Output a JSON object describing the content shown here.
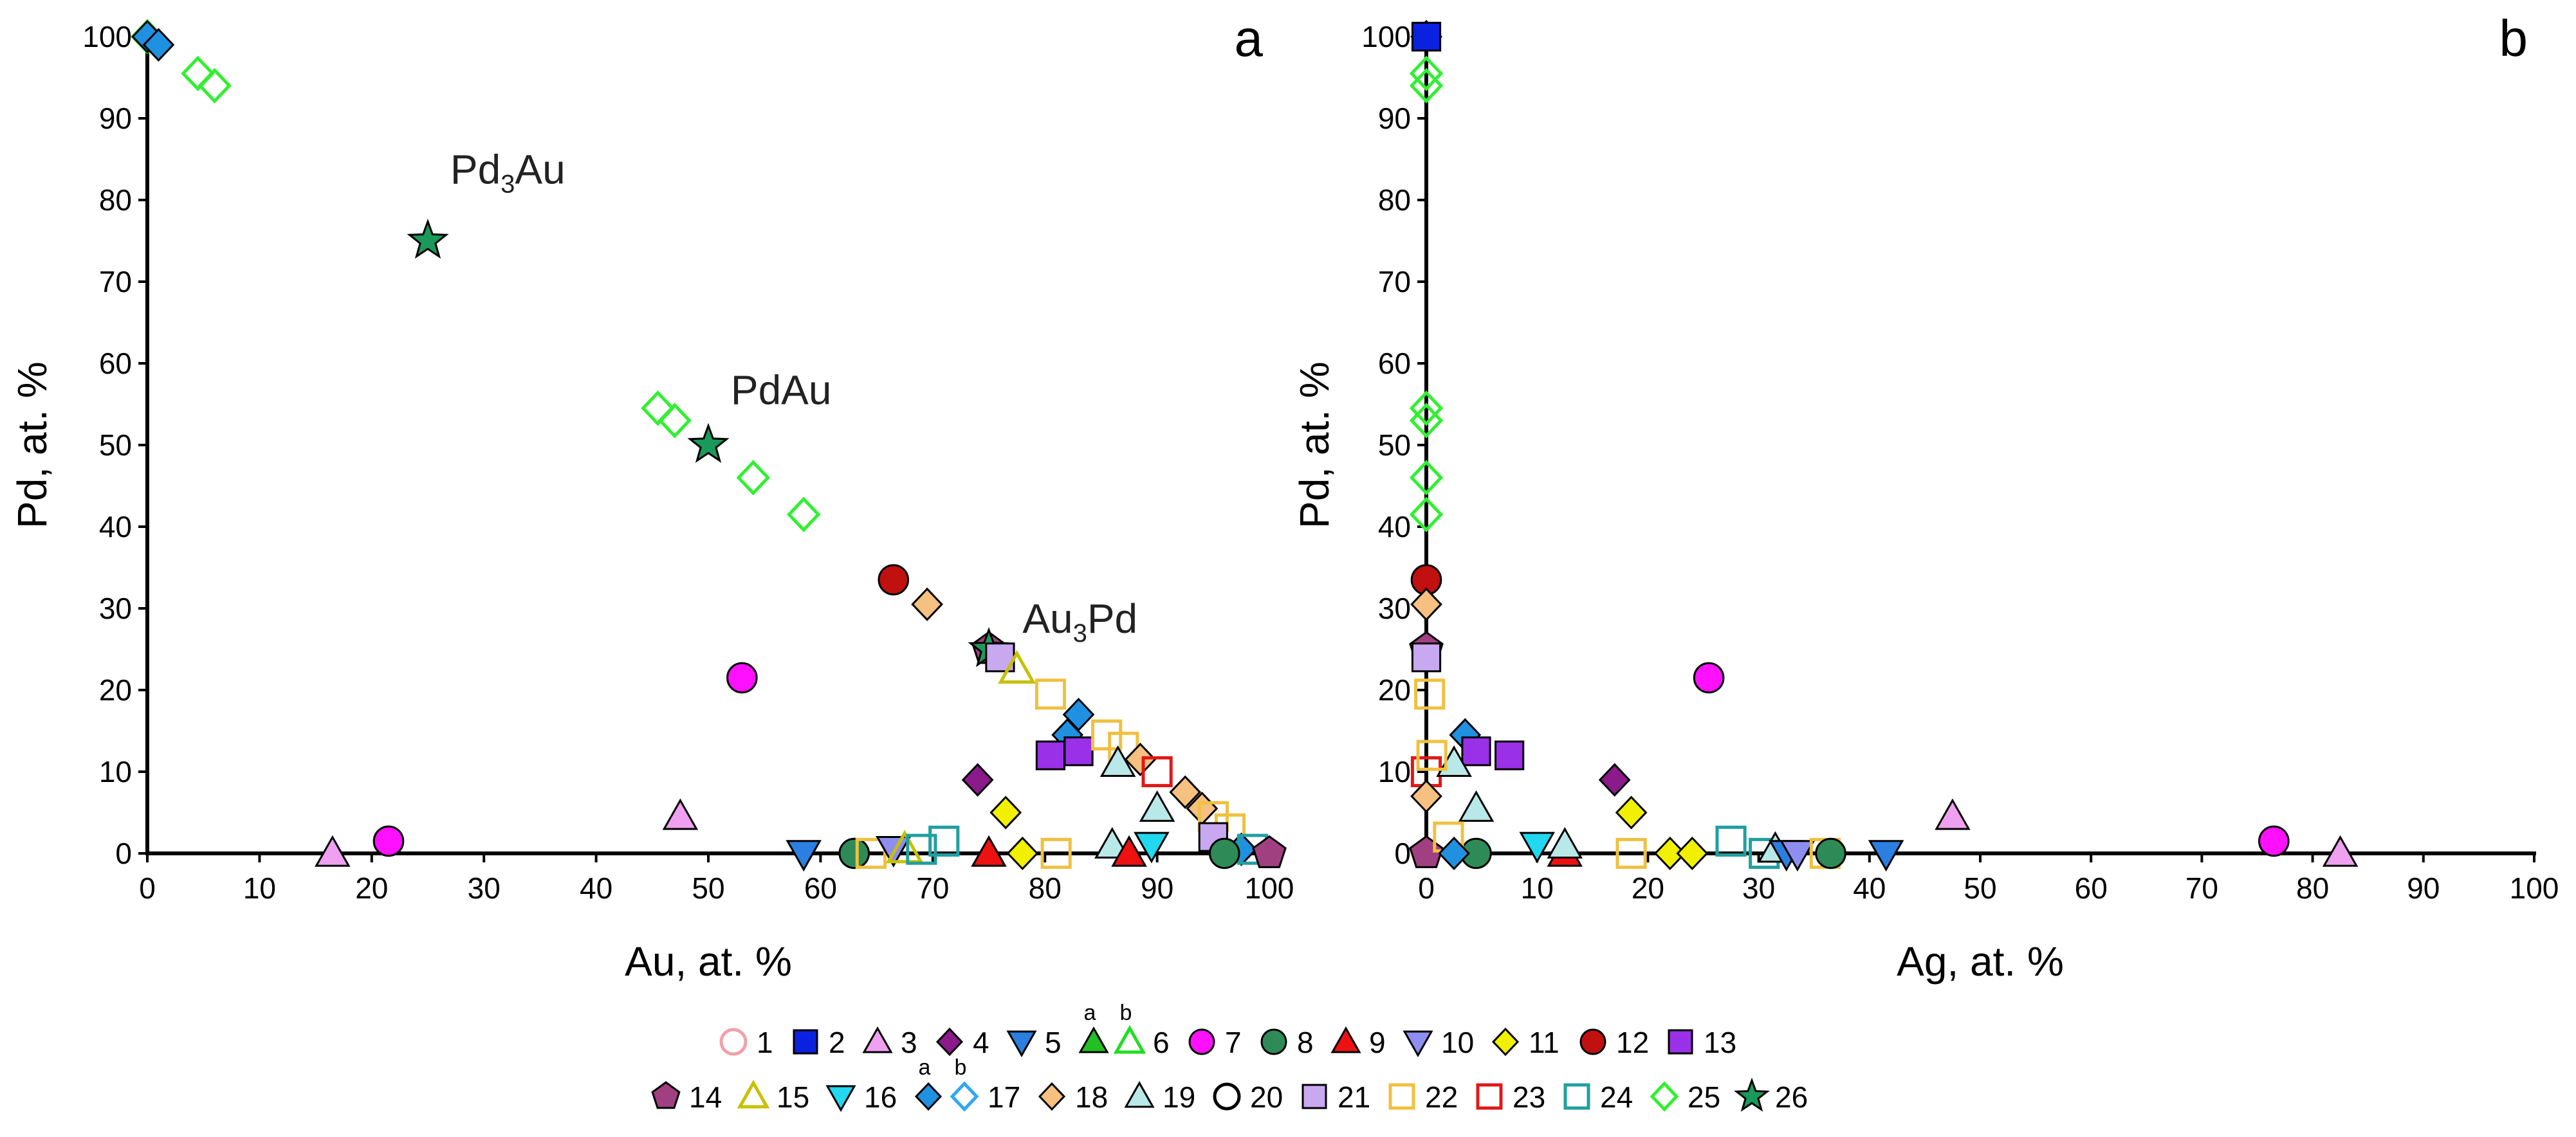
{
  "chart_data": [
    {
      "panel": "a",
      "type": "scatter",
      "xlabel": "Au, at. %",
      "ylabel": "Pd, at. %",
      "xlim": [
        0,
        100
      ],
      "ylim": [
        0,
        100
      ],
      "xticks": [
        0,
        10,
        20,
        30,
        40,
        50,
        60,
        70,
        80,
        90,
        100
      ],
      "yticks": [
        0,
        10,
        20,
        30,
        40,
        50,
        60,
        70,
        80,
        90,
        100
      ],
      "annotations": [
        {
          "text": "Pd",
          "sub": "3",
          "tail": "Au",
          "x": 27,
          "y": 82
        },
        {
          "text": "PdAu",
          "sub": "",
          "tail": "",
          "x": 52,
          "y": 55
        },
        {
          "text": "Au",
          "sub": "3",
          "tail": "Pd",
          "x": 78,
          "y": 27
        }
      ],
      "points": [
        {
          "s": 25,
          "x": 0,
          "y": 100
        },
        {
          "s": 17,
          "x": 0,
          "y": 100
        },
        {
          "s": 17,
          "x": 1,
          "y": 99
        },
        {
          "s": 25,
          "x": 4.5,
          "y": 95.5
        },
        {
          "s": 25,
          "x": 6,
          "y": 94
        },
        {
          "s": 26,
          "x": 25,
          "y": 75
        },
        {
          "s": 25,
          "x": 45.5,
          "y": 54.5
        },
        {
          "s": 25,
          "x": 47,
          "y": 53
        },
        {
          "s": 26,
          "x": 50,
          "y": 50
        },
        {
          "s": 25,
          "x": 54,
          "y": 46
        },
        {
          "s": 25,
          "x": 58.5,
          "y": 41.5
        },
        {
          "s": 12,
          "x": 66.5,
          "y": 33.5
        },
        {
          "s": 18,
          "x": 69.5,
          "y": 30.5
        },
        {
          "s": 7,
          "x": 53,
          "y": 21.5
        },
        {
          "s": 14,
          "x": 75,
          "y": 25
        },
        {
          "s": 26,
          "x": 75,
          "y": 25
        },
        {
          "s": 21,
          "x": 76,
          "y": 24
        },
        {
          "s": 15,
          "x": 77.5,
          "y": 22.5
        },
        {
          "s": 22,
          "x": 80.5,
          "y": 19.5
        },
        {
          "s": 17,
          "x": 83,
          "y": 17
        },
        {
          "s": 17,
          "x": 82,
          "y": 14.5
        },
        {
          "s": 13,
          "x": 80.5,
          "y": 12
        },
        {
          "s": 13,
          "x": 83,
          "y": 12.5
        },
        {
          "s": 22,
          "x": 85.5,
          "y": 14.5
        },
        {
          "s": 22,
          "x": 87,
          "y": 13
        },
        {
          "s": 19,
          "x": 86.5,
          "y": 11
        },
        {
          "s": 18,
          "x": 88.5,
          "y": 11.5
        },
        {
          "s": 23,
          "x": 90,
          "y": 10
        },
        {
          "s": 4,
          "x": 74,
          "y": 9
        },
        {
          "s": 11,
          "x": 76.5,
          "y": 5
        },
        {
          "s": 19,
          "x": 90,
          "y": 5.5
        },
        {
          "s": 18,
          "x": 92.5,
          "y": 7.5
        },
        {
          "s": 18,
          "x": 94,
          "y": 5.5
        },
        {
          "s": 22,
          "x": 95,
          "y": 4.5
        },
        {
          "s": 22,
          "x": 96.5,
          "y": 3
        },
        {
          "s": 21,
          "x": 95,
          "y": 2
        },
        {
          "s": 17,
          "x": 97.5,
          "y": 0.5
        },
        {
          "s": 24,
          "x": 98.5,
          "y": 0.5
        },
        {
          "s": 14,
          "x": 100,
          "y": 0
        },
        {
          "s": 3,
          "x": 16.5,
          "y": 0
        },
        {
          "s": 7,
          "x": 21.5,
          "y": 1.5
        },
        {
          "s": 3,
          "x": 47.5,
          "y": 4.5
        },
        {
          "s": 5,
          "x": 58.5,
          "y": 0
        },
        {
          "s": 8,
          "x": 63,
          "y": 0
        },
        {
          "s": 22,
          "x": 64.5,
          "y": 0
        },
        {
          "s": 10,
          "x": 66.5,
          "y": 0.5
        },
        {
          "s": 15,
          "x": 67.5,
          "y": 0.5
        },
        {
          "s": 24,
          "x": 69,
          "y": 0.5
        },
        {
          "s": 24,
          "x": 71,
          "y": 1.5
        },
        {
          "s": 9,
          "x": 75,
          "y": 0
        },
        {
          "s": 11,
          "x": 78,
          "y": 0
        },
        {
          "s": 22,
          "x": 81,
          "y": 0
        },
        {
          "s": 19,
          "x": 86,
          "y": 1
        },
        {
          "s": 9,
          "x": 87.5,
          "y": 0
        },
        {
          "s": 16,
          "x": 89.5,
          "y": 1
        },
        {
          "s": 8,
          "x": 96,
          "y": 0
        }
      ]
    },
    {
      "panel": "b",
      "type": "scatter",
      "xlabel": "Ag, at. %",
      "ylabel": "Pd, at. %",
      "xlim": [
        0,
        100
      ],
      "ylim": [
        0,
        100
      ],
      "xticks": [
        0,
        10,
        20,
        30,
        40,
        50,
        60,
        70,
        80,
        90,
        100
      ],
      "yticks": [
        0,
        10,
        20,
        30,
        40,
        50,
        60,
        70,
        80,
        90,
        100
      ],
      "points": [
        {
          "s": 17,
          "x": 0,
          "y": 100
        },
        {
          "s": 2,
          "x": 0,
          "y": 100
        },
        {
          "s": 25,
          "x": 0,
          "y": 95.5
        },
        {
          "s": 25,
          "x": 0,
          "y": 94
        },
        {
          "s": 25,
          "x": 0,
          "y": 54.5
        },
        {
          "s": 25,
          "x": 0,
          "y": 53
        },
        {
          "s": 25,
          "x": 0,
          "y": 46
        },
        {
          "s": 25,
          "x": 0,
          "y": 41.5
        },
        {
          "s": 12,
          "x": 0,
          "y": 33.5
        },
        {
          "s": 18,
          "x": 0,
          "y": 30.5
        },
        {
          "s": 14,
          "x": 0,
          "y": 25
        },
        {
          "s": 21,
          "x": 0,
          "y": 24
        },
        {
          "s": 22,
          "x": 0.3,
          "y": 19.5
        },
        {
          "s": 17,
          "x": 3.5,
          "y": 14.5
        },
        {
          "s": 13,
          "x": 4.5,
          "y": 12.5
        },
        {
          "s": 13,
          "x": 7.5,
          "y": 12
        },
        {
          "s": 23,
          "x": 0,
          "y": 10
        },
        {
          "s": 19,
          "x": 2.5,
          "y": 11
        },
        {
          "s": 22,
          "x": 0.5,
          "y": 12
        },
        {
          "s": 18,
          "x": 0,
          "y": 7
        },
        {
          "s": 19,
          "x": 4.5,
          "y": 5.5
        },
        {
          "s": 4,
          "x": 17,
          "y": 9
        },
        {
          "s": 11,
          "x": 18.5,
          "y": 5
        },
        {
          "s": 7,
          "x": 25.5,
          "y": 21.5
        },
        {
          "s": 3,
          "x": 47.5,
          "y": 4.5
        },
        {
          "s": 7,
          "x": 76.5,
          "y": 1.5
        },
        {
          "s": 3,
          "x": 82.5,
          "y": 0
        },
        {
          "s": 14,
          "x": 0,
          "y": 0
        },
        {
          "s": 8,
          "x": 4.5,
          "y": 0
        },
        {
          "s": 22,
          "x": 2,
          "y": 2
        },
        {
          "s": 17,
          "x": 2.5,
          "y": 0
        },
        {
          "s": 16,
          "x": 10,
          "y": 1
        },
        {
          "s": 9,
          "x": 12.5,
          "y": 0
        },
        {
          "s": 19,
          "x": 12.5,
          "y": 1
        },
        {
          "s": 22,
          "x": 18.5,
          "y": 0
        },
        {
          "s": 11,
          "x": 22,
          "y": 0
        },
        {
          "s": 11,
          "x": 24,
          "y": 0
        },
        {
          "s": 24,
          "x": 27.5,
          "y": 1.5
        },
        {
          "s": 24,
          "x": 30.5,
          "y": 0
        },
        {
          "s": 19,
          "x": 31.5,
          "y": 0.5
        },
        {
          "s": 5,
          "x": 32.5,
          "y": 0
        },
        {
          "s": 10,
          "x": 33.5,
          "y": 0
        },
        {
          "s": 22,
          "x": 36,
          "y": 0
        },
        {
          "s": 8,
          "x": 36.5,
          "y": 0
        },
        {
          "s": 5,
          "x": 41.5,
          "y": 0
        }
      ]
    }
  ],
  "legend": {
    "rows": [
      [
        {
          "label": "1",
          "symbols": [
            1
          ]
        },
        {
          "label": "2",
          "symbols": [
            2
          ]
        },
        {
          "label": "3",
          "symbols": [
            3
          ]
        },
        {
          "label": "4",
          "symbols": [
            4
          ]
        },
        {
          "label": "5",
          "symbols": [
            5
          ]
        },
        {
          "label": "6",
          "symbols": [
            "6a",
            "6b"
          ],
          "sups": [
            "a",
            "b"
          ]
        },
        {
          "label": "7",
          "symbols": [
            7
          ]
        },
        {
          "label": "8",
          "symbols": [
            8
          ]
        },
        {
          "label": "9",
          "symbols": [
            9
          ]
        },
        {
          "label": "10",
          "symbols": [
            10
          ]
        },
        {
          "label": "11",
          "symbols": [
            11
          ]
        },
        {
          "label": "12",
          "symbols": [
            12
          ]
        },
        {
          "label": "13",
          "symbols": [
            13
          ]
        }
      ],
      [
        {
          "label": "14",
          "symbols": [
            14
          ]
        },
        {
          "label": "15",
          "symbols": [
            15
          ]
        },
        {
          "label": "16",
          "symbols": [
            16
          ]
        },
        {
          "label": "17",
          "symbols": [
            "17a",
            "17b"
          ],
          "sups": [
            "a",
            "b"
          ]
        },
        {
          "label": "18",
          "symbols": [
            18
          ]
        },
        {
          "label": "19",
          "symbols": [
            19
          ]
        },
        {
          "label": "20",
          "symbols": [
            20
          ]
        },
        {
          "label": "21",
          "symbols": [
            21
          ]
        },
        {
          "label": "22",
          "symbols": [
            22
          ]
        },
        {
          "label": "23",
          "symbols": [
            23
          ]
        },
        {
          "label": "24",
          "symbols": [
            24
          ]
        },
        {
          "label": "25",
          "symbols": [
            25
          ]
        },
        {
          "label": "26",
          "symbols": [
            26
          ]
        }
      ]
    ]
  },
  "symbols": {
    "1": {
      "shape": "circle",
      "fill": "none",
      "stroke": "#f2a0a8"
    },
    "2": {
      "shape": "square",
      "fill": "#0a22e0",
      "stroke": "#000000"
    },
    "3": {
      "shape": "triangle",
      "fill": "#f0a0f0",
      "stroke": "#000000"
    },
    "4": {
      "shape": "diamond",
      "fill": "#8b1a8b",
      "stroke": "#000000"
    },
    "5": {
      "shape": "tridown",
      "fill": "#2a7fe0",
      "stroke": "#000000"
    },
    "6a": {
      "shape": "triangle",
      "fill": "#22c022",
      "stroke": "#000000"
    },
    "6b": {
      "shape": "triangle",
      "fill": "none",
      "stroke": "#22dd22"
    },
    "6": {
      "shape": "triangle",
      "fill": "#22c022",
      "stroke": "#000000"
    },
    "7": {
      "shape": "circle",
      "fill": "#ff10ff",
      "stroke": "#000000"
    },
    "8": {
      "shape": "circle",
      "fill": "#2e8b57",
      "stroke": "#000000"
    },
    "9": {
      "shape": "triangle",
      "fill": "#ee1111",
      "stroke": "#000000"
    },
    "10": {
      "shape": "tridown",
      "fill": "#8e8ef0",
      "stroke": "#000000"
    },
    "11": {
      "shape": "diamond",
      "fill": "#f0f000",
      "stroke": "#000000"
    },
    "12": {
      "shape": "circle",
      "fill": "#c01010",
      "stroke": "#000000"
    },
    "13": {
      "shape": "square",
      "fill": "#9a30e8",
      "stroke": "#000000"
    },
    "14": {
      "shape": "pentagon",
      "fill": "#a04080",
      "stroke": "#000000"
    },
    "15": {
      "shape": "triangle",
      "fill": "none",
      "stroke": "#c8c000"
    },
    "16": {
      "shape": "tridown",
      "fill": "#22d8f0",
      "stroke": "#000000"
    },
    "17a": {
      "shape": "diamond",
      "fill": "#2090e0",
      "stroke": "#000000"
    },
    "17b": {
      "shape": "diamond",
      "fill": "none",
      "stroke": "#30a8f0"
    },
    "17": {
      "shape": "diamond",
      "fill": "#2090e0",
      "stroke": "#000000"
    },
    "18": {
      "shape": "diamond",
      "fill": "#f5c080",
      "stroke": "#000000"
    },
    "19": {
      "shape": "triangle",
      "fill": "#b8e8e8",
      "stroke": "#000000"
    },
    "20": {
      "shape": "circle",
      "fill": "none",
      "stroke": "#000000"
    },
    "21": {
      "shape": "square",
      "fill": "#c8a8f0",
      "stroke": "#000000"
    },
    "22": {
      "shape": "square",
      "fill": "none",
      "stroke": "#f0c040"
    },
    "23": {
      "shape": "square",
      "fill": "none",
      "stroke": "#e01818"
    },
    "24": {
      "shape": "square",
      "fill": "none",
      "stroke": "#20a0a0"
    },
    "25": {
      "shape": "diamond",
      "fill": "none",
      "stroke": "#30f030"
    },
    "26": {
      "shape": "star",
      "fill": "#1a9a5a",
      "stroke": "#000000"
    }
  }
}
